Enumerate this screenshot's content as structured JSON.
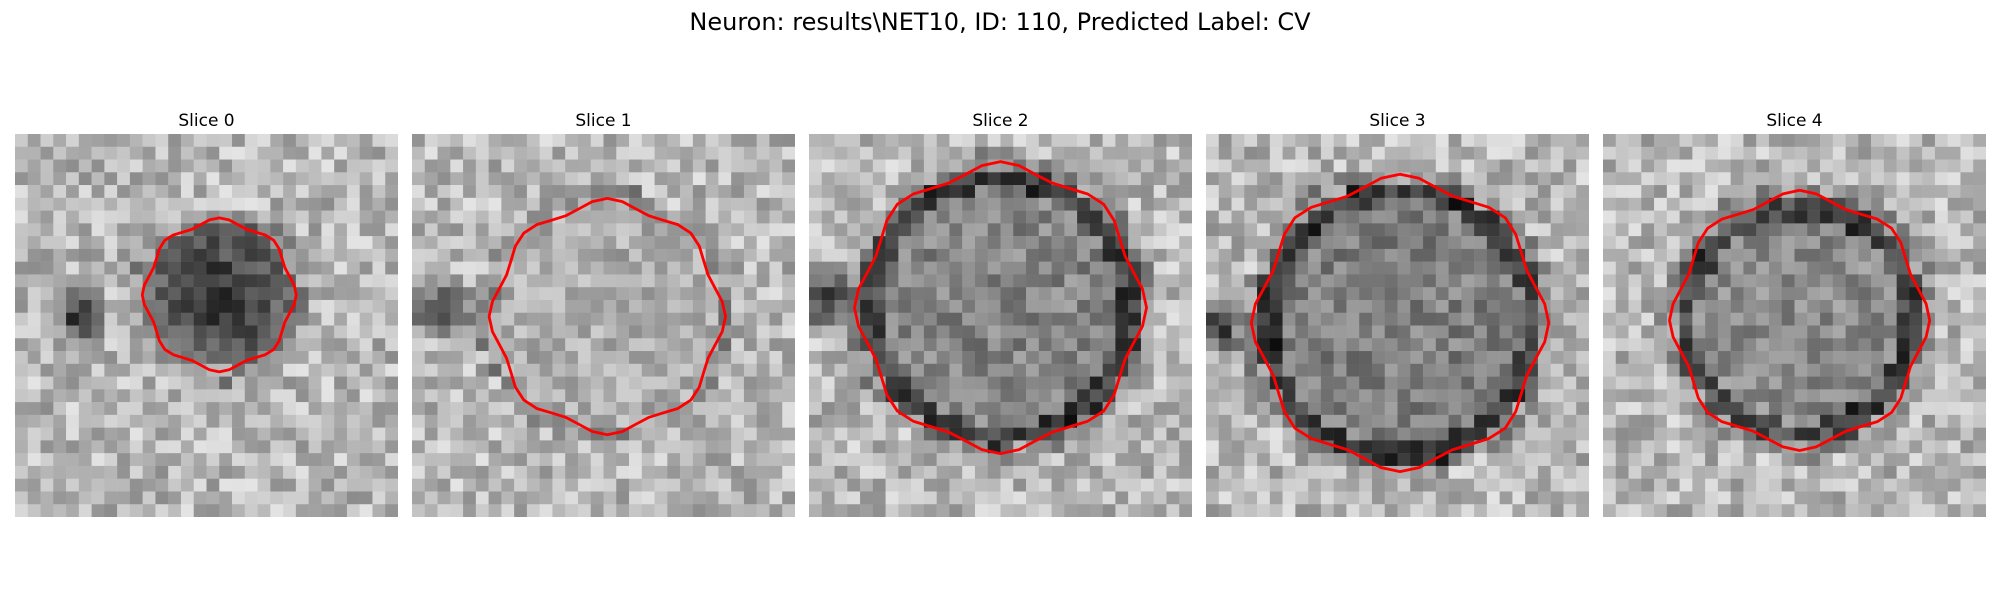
{
  "figure": {
    "title": "Neuron: results\\NET10, ID: 110, Predicted Label: CV"
  },
  "panels": [
    {
      "title": "Slice 0"
    },
    {
      "title": "Slice 1"
    },
    {
      "title": "Slice 2"
    },
    {
      "title": "Slice 3"
    },
    {
      "title": "Slice 4"
    }
  ],
  "colors": {
    "contour": "#ff0000",
    "background": "#ffffff",
    "image_colormap": "grayscale"
  }
}
